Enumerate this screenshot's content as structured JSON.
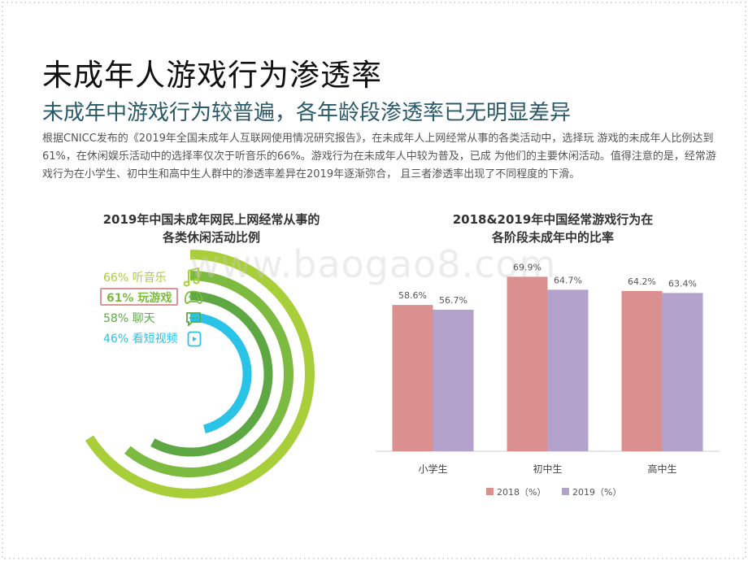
{
  "title": "未成年人游戏行为渗透率",
  "subtitle": "未成年中游戏行为较普遍，各年龄段渗透率已无明显差异",
  "body_text": "根据CNICC发布的《2019年全国未成年人互联网使用情况研究报告》，在未成年人上网经常从事的各类活动中，选择玩 游戏的未成年人比例达到61%，在休闲娱乐活动中的选择率仅次于听音乐的66%。游戏行为在未成年人中较为普及，已成 为他们的主要休闲活动。值得注意的是，经常游戏行为在小学生、初中生和高中生人群中的渗透率差异在2019年逐渐弥合， 且三者渗透率出现了不同程度的下滑。",
  "watermark": "www.baogao8.com",
  "left_chart": {
    "title_line1": "2019年中国未成年网民上网经常从事的",
    "title_line2": "各类休闲活动比例",
    "items": [
      {
        "label": "66% 听音乐",
        "value": 66,
        "color": "#a8cf3a",
        "icon": "music-icon",
        "highlight": false
      },
      {
        "label": "61% 玩游戏",
        "value": 61,
        "color": "#7dbb40",
        "icon": "gamepad-icon",
        "highlight": true
      },
      {
        "label": "58% 聊天",
        "value": 58,
        "color": "#5ea844",
        "icon": "chat-icon",
        "highlight": false
      },
      {
        "label": "46% 看短视频",
        "value": 46,
        "color": "#29c3e8",
        "icon": "video-icon",
        "highlight": false
      }
    ]
  },
  "chart_data": {
    "type": "bar",
    "title": "2018&2019年中国经常游戏行为在各阶段未成年中的比率",
    "categories": [
      "小学生",
      "初中生",
      "高中生"
    ],
    "series": [
      {
        "name": "2018（%）",
        "values": [
          58.6,
          69.9,
          64.2
        ],
        "labels": [
          "58.6%",
          "69.9%",
          "64.2%"
        ],
        "color": "#d9908f"
      },
      {
        "name": "2019（%）",
        "values": [
          56.7,
          64.7,
          63.4
        ],
        "labels": [
          "56.7%",
          "64.7%",
          "63.4%"
        ],
        "color": "#b3a2cb"
      }
    ],
    "ylim": [
      0,
      100
    ],
    "legend": "bottom"
  },
  "right_chart": {
    "title_line1": "2018&2019年中国经常游戏行为在",
    "title_line2": "各阶段未成年中的比率"
  }
}
